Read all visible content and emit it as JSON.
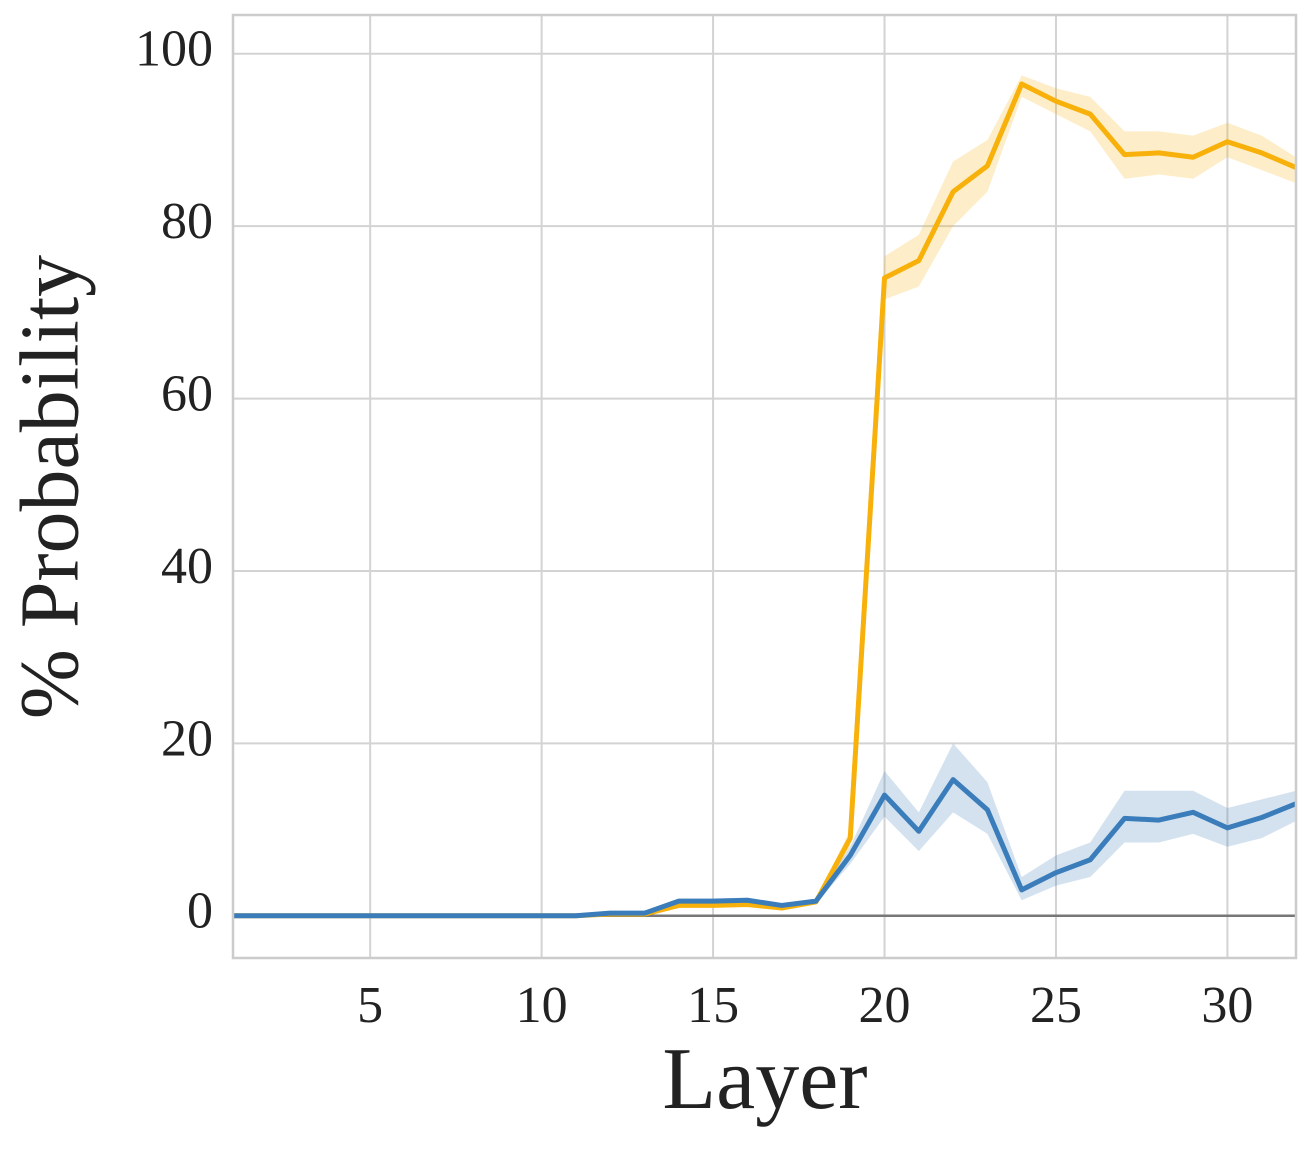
{
  "chart_data": {
    "type": "line",
    "xlabel": "Layer",
    "ylabel": "% Probability",
    "x": [
      1,
      2,
      3,
      4,
      5,
      6,
      7,
      8,
      9,
      10,
      11,
      12,
      13,
      14,
      15,
      16,
      17,
      18,
      19,
      20,
      21,
      22,
      23,
      24,
      25,
      26,
      27,
      28,
      29,
      30,
      31,
      32
    ],
    "series": [
      {
        "color": "#f7b10a",
        "values": [
          0,
          0,
          0,
          0,
          0,
          0,
          0,
          0,
          0,
          0,
          0,
          0.2,
          0.2,
          1.2,
          1.2,
          1.3,
          0.9,
          1.6,
          9,
          74,
          76,
          84,
          87,
          96.5,
          94.5,
          93,
          88.3,
          88.5,
          88,
          89.8,
          88.5,
          86.8
        ],
        "lower": [
          0,
          0,
          0,
          0,
          0,
          0,
          0,
          0,
          0,
          0,
          0,
          0,
          0,
          1,
          1,
          1.1,
          0.7,
          1.4,
          8,
          71.5,
          73,
          80,
          84,
          95,
          93,
          91,
          85.5,
          86,
          85.5,
          88,
          86.5,
          85
        ],
        "upper": [
          0,
          0,
          0,
          0,
          0,
          0,
          0,
          0,
          0,
          0,
          0,
          0.4,
          0.4,
          1.4,
          1.4,
          1.5,
          1.1,
          1.8,
          10,
          76.5,
          79,
          87.5,
          90,
          97.5,
          96,
          95,
          91,
          91,
          90.5,
          92,
          90.5,
          88
        ]
      },
      {
        "color": "#3a7dba",
        "values": [
          0,
          0,
          0,
          0,
          0,
          0,
          0,
          0,
          0,
          0,
          0,
          0.3,
          0.3,
          1.7,
          1.7,
          1.8,
          1.2,
          1.7,
          7,
          14,
          9.8,
          15.8,
          12.3,
          3,
          5,
          6.5,
          11.3,
          11.1,
          12,
          10.2,
          11.4,
          13
        ],
        "lower": [
          0,
          0,
          0,
          0,
          0,
          0,
          0,
          0,
          0,
          0,
          0,
          0.1,
          0.1,
          1.4,
          1.4,
          1.5,
          1,
          1.4,
          6,
          11.5,
          7.5,
          12,
          9.5,
          1.8,
          3.5,
          4.5,
          8.5,
          8.5,
          9.5,
          8,
          9,
          11
        ],
        "upper": [
          0,
          0,
          0,
          0,
          0,
          0,
          0,
          0,
          0,
          0,
          0,
          0.5,
          0.5,
          2,
          2,
          2.1,
          1.4,
          2,
          8,
          16.8,
          12,
          20,
          15.5,
          4.5,
          7,
          8.5,
          14.5,
          14.5,
          14.5,
          12.5,
          13.5,
          14.5
        ]
      }
    ],
    "hline": 0,
    "xlim": [
      1,
      32
    ],
    "ylim": [
      -4.9,
      104.5
    ],
    "xticks": [
      5,
      10,
      15,
      20,
      25,
      30
    ],
    "yticks": [
      0,
      20,
      40,
      60,
      80,
      100
    ],
    "grid": true
  }
}
